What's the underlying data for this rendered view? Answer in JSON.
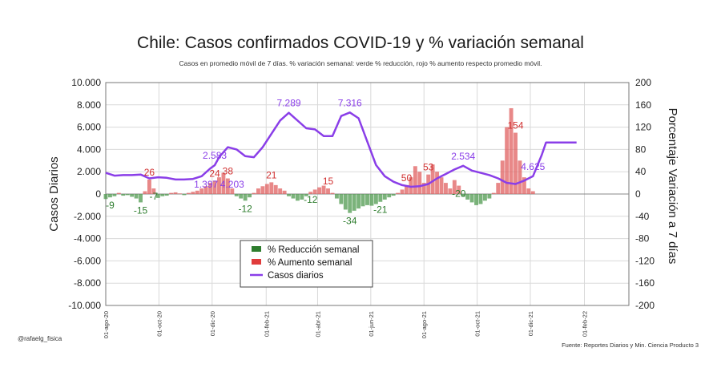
{
  "chart_data": {
    "type": "bar+line",
    "title": "Chile: Casos confirmados COVID-19 y % variación semanal",
    "subtitle": "Casos en promedio móvil de 7 días. % variación semanal: verde % reducción, rojo % aumento respecto promedio móvil.",
    "ylabel_left": "Casos Diarios",
    "ylabel_right": "Porcentaje Variación a 7 días",
    "ylim_left": [
      -10000,
      10000
    ],
    "ylim_right": [
      -200,
      200
    ],
    "yticks_left": [
      "10.000",
      "8.000",
      "6.000",
      "4.000",
      "2.000",
      "0",
      "-2.000",
      "-4.000",
      "-6.000",
      "-8.000",
      "-10.000"
    ],
    "yticks_right": [
      "200",
      "160",
      "120",
      "80",
      "40",
      "0",
      "-40",
      "-80",
      "-120",
      "-160",
      "-200"
    ],
    "xticks": [
      "01-ago-20",
      "01-oct-20",
      "01-dic-20",
      "01-feb-21",
      "01-abr-21",
      "01-jun-21",
      "01-ago-21",
      "01-oct-21",
      "01-dic-21",
      "01-feb-22"
    ],
    "grid": true,
    "legend": {
      "placement": "center-bottom",
      "entries": [
        {
          "label": "% Reducción semanal",
          "color": "#2e7d2e",
          "kind": "bar"
        },
        {
          "label": "% Aumento semanal",
          "color": "#e03c3c",
          "kind": "bar"
        },
        {
          "label": "Casos diarios",
          "color": "#8a3ee8",
          "kind": "line"
        }
      ]
    },
    "colors": {
      "reduction": "#4f9a4f",
      "increase": "#e06060",
      "line": "#8a3ee8"
    },
    "series_line": {
      "name": "Casos diarios",
      "x_days": [
        0,
        10,
        20,
        30,
        40,
        50,
        60,
        70,
        80,
        90,
        100,
        110,
        120,
        125,
        130,
        140,
        150,
        160,
        170,
        180,
        190,
        200,
        210,
        230,
        240,
        250,
        260,
        270,
        280,
        290,
        300,
        310,
        320,
        330,
        340,
        350,
        360,
        370,
        380,
        390,
        400,
        410,
        420,
        430,
        440,
        450,
        460,
        470,
        480,
        490,
        500,
        505,
        510,
        520,
        530,
        535,
        540
      ],
      "values": [
        1900,
        1650,
        1700,
        1700,
        1750,
        1400,
        1500,
        1450,
        1300,
        1300,
        1350,
        1600,
        2300,
        2583,
        3300,
        4203,
        4000,
        3400,
        3300,
        4200,
        5400,
        6600,
        7289,
        5900,
        5800,
        5200,
        5200,
        7000,
        7316,
        6800,
        4700,
        2600,
        1600,
        1100,
        800,
        650,
        700,
        900,
        1400,
        1800,
        2200,
        2534,
        2100,
        1900,
        1700,
        1400,
        1000,
        900,
        1200,
        1600,
        3500,
        4625,
        4625,
        4625,
        4625,
        4625,
        4625
      ],
      "labels": [
        {
          "day": 115,
          "text": "1.397"
        },
        {
          "day": 125,
          "text": "2.583"
        },
        {
          "day": 145,
          "text": "4.203"
        },
        {
          "day": 210,
          "text": "7.289"
        },
        {
          "day": 280,
          "text": "7.316"
        },
        {
          "day": 410,
          "text": "2.534"
        },
        {
          "day": 490,
          "text": "4.625"
        }
      ]
    },
    "series_bars": {
      "name": "% variación semanal",
      "x_days": [
        0,
        5,
        10,
        15,
        20,
        25,
        30,
        35,
        40,
        45,
        50,
        55,
        60,
        65,
        70,
        75,
        80,
        85,
        90,
        95,
        100,
        105,
        110,
        115,
        120,
        125,
        130,
        135,
        140,
        145,
        150,
        155,
        160,
        165,
        170,
        175,
        180,
        185,
        190,
        195,
        200,
        205,
        210,
        215,
        220,
        225,
        230,
        235,
        240,
        245,
        250,
        255,
        260,
        265,
        270,
        275,
        280,
        285,
        290,
        295,
        300,
        305,
        310,
        315,
        320,
        325,
        330,
        335,
        340,
        345,
        350,
        355,
        360,
        365,
        370,
        375,
        380,
        385,
        390,
        395,
        400,
        405,
        410,
        415,
        420,
        425,
        430,
        435,
        440,
        445,
        450,
        455,
        460,
        465,
        470,
        475,
        480,
        485,
        490
      ],
      "values": [
        -9,
        -6,
        -4,
        2,
        -3,
        -2,
        -5,
        -8,
        -15,
        5,
        26,
        10,
        -7,
        -4,
        -3,
        2,
        3,
        1,
        -2,
        2,
        4,
        6,
        10,
        14,
        20,
        24,
        30,
        38,
        28,
        10,
        -4,
        -8,
        -12,
        -6,
        2,
        10,
        14,
        18,
        21,
        16,
        10,
        6,
        -4,
        -8,
        -12,
        -10,
        -4,
        4,
        8,
        12,
        15,
        10,
        2,
        -8,
        -18,
        -28,
        -34,
        -30,
        -26,
        -22,
        -20,
        -21,
        -18,
        -14,
        -10,
        -6,
        -3,
        2,
        8,
        16,
        30,
        50,
        40,
        20,
        35,
        53,
        40,
        30,
        20,
        10,
        25,
        15,
        -5,
        -10,
        -15,
        -20,
        -18,
        -12,
        -8,
        2,
        20,
        60,
        120,
        154,
        110,
        60,
        30,
        10,
        5
      ],
      "labels": [
        {
          "day": 5,
          "text": "-9"
        },
        {
          "day": 40,
          "text": "-15"
        },
        {
          "day": 55,
          "text": "-7"
        },
        {
          "day": 50,
          "text": "26"
        },
        {
          "day": 125,
          "text": "24"
        },
        {
          "day": 140,
          "text": "38"
        },
        {
          "day": 160,
          "text": "-12"
        },
        {
          "day": 190,
          "text": "21"
        },
        {
          "day": 235,
          "text": "-12"
        },
        {
          "day": 255,
          "text": "15"
        },
        {
          "day": 280,
          "text": "-34"
        },
        {
          "day": 315,
          "text": "-21"
        },
        {
          "day": 345,
          "text": "50"
        },
        {
          "day": 370,
          "text": "53"
        },
        {
          "day": 405,
          "text": "-20"
        },
        {
          "day": 470,
          "text": "154"
        }
      ]
    }
  },
  "credit": "@rafaelg_fisica",
  "source": "Fuente: Reportes Diarios y Min. Ciencia Producto 3"
}
